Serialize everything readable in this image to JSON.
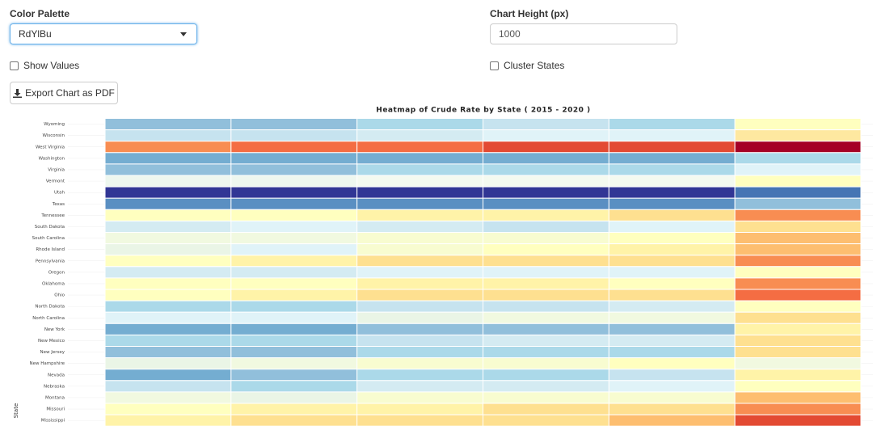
{
  "controls": {
    "color_palette_label": "Color Palette",
    "color_palette_value": "RdYlBu",
    "chart_height_label": "Chart Height (px)",
    "chart_height_value": "1000",
    "show_values_label": "Show Values",
    "cluster_states_label": "Cluster States",
    "export_button": "Export Chart as PDF"
  },
  "heatmap": {
    "title": "Heatmap of Crude Rate by State ( 2015 - 2020 )",
    "y_axis_label": "State",
    "rows": [
      {
        "state": "Wyoming",
        "colors": [
          "#91bfdb",
          "#91bfdb",
          "#abd9e9",
          "#c6e3ef",
          "#abd9e9",
          "#ffffbf"
        ]
      },
      {
        "state": "Wisconsin",
        "colors": [
          "#c6e3ef",
          "#c6e3ef",
          "#d4ebf2",
          "#e0f3f8",
          "#e0f3f8",
          "#fee8a0"
        ]
      },
      {
        "state": "West Virginia",
        "colors": [
          "#f88d52",
          "#f46d43",
          "#f46d43",
          "#e34a33",
          "#e34a33",
          "#a50026"
        ]
      },
      {
        "state": "Washington",
        "colors": [
          "#74add1",
          "#74add1",
          "#74add1",
          "#74add1",
          "#74add1",
          "#abd9e9"
        ]
      },
      {
        "state": "Virginia",
        "colors": [
          "#91bfdb",
          "#91bfdb",
          "#abd9e9",
          "#abd9e9",
          "#abd9e9",
          "#e0f3f8"
        ]
      },
      {
        "state": "Vermont",
        "colors": [
          "#eef7ef",
          "#eef7ef",
          "#f4faf0",
          "#f4faf0",
          "#f4faf0",
          "#ffffbf"
        ]
      },
      {
        "state": "Utah",
        "colors": [
          "#313695",
          "#313695",
          "#313695",
          "#313695",
          "#313695",
          "#4575b4"
        ]
      },
      {
        "state": "Texas",
        "colors": [
          "#5a8fc2",
          "#5a8fc2",
          "#5a8fc2",
          "#5a8fc2",
          "#5a8fc2",
          "#91bfdb"
        ]
      },
      {
        "state": "Tennessee",
        "colors": [
          "#ffffbf",
          "#ffffbf",
          "#fff3a8",
          "#fff3a8",
          "#fee090",
          "#f88d52"
        ]
      },
      {
        "state": "South Dakota",
        "colors": [
          "#d4ebf2",
          "#e0f3f8",
          "#d4ebf2",
          "#c6e3ef",
          "#e0f3f8",
          "#fee090"
        ]
      },
      {
        "state": "South Carolina",
        "colors": [
          "#f1f9e0",
          "#f1f9e0",
          "#f8fcd0",
          "#f8fcd0",
          "#ffffbf",
          "#fdbe70"
        ]
      },
      {
        "state": "Rhode Island",
        "colors": [
          "#eaf5e6",
          "#e0f3f8",
          "#f8fcd0",
          "#ffffbf",
          "#fff3a8",
          "#fdbe70"
        ]
      },
      {
        "state": "Pennsylvania",
        "colors": [
          "#ffffbf",
          "#fff3a8",
          "#fee090",
          "#fee090",
          "#fee090",
          "#f88d52"
        ]
      },
      {
        "state": "Oregon",
        "colors": [
          "#d4ebf2",
          "#d4ebf2",
          "#e0f3f8",
          "#e0f3f8",
          "#e0f3f8",
          "#ffffbf"
        ]
      },
      {
        "state": "Oklahoma",
        "colors": [
          "#ffffbf",
          "#ffffbf",
          "#fff3a8",
          "#fff3a8",
          "#ffffbf",
          "#f88d52"
        ]
      },
      {
        "state": "Ohio",
        "colors": [
          "#ffffbf",
          "#fff3a8",
          "#fee090",
          "#fee090",
          "#fee090",
          "#f46d43"
        ]
      },
      {
        "state": "North Dakota",
        "colors": [
          "#abd9e9",
          "#abd9e9",
          "#c6e3ef",
          "#c6e3ef",
          "#d4ebf2",
          "#ffffbf"
        ]
      },
      {
        "state": "North Carolina",
        "colors": [
          "#e0f3f8",
          "#e0f3f8",
          "#eaf5e6",
          "#f1f9e0",
          "#f1f9e0",
          "#fee090"
        ]
      },
      {
        "state": "New York",
        "colors": [
          "#74add1",
          "#74add1",
          "#91bfdb",
          "#91bfdb",
          "#91bfdb",
          "#fff3a8"
        ]
      },
      {
        "state": "New Mexico",
        "colors": [
          "#abd9e9",
          "#abd9e9",
          "#c6e3ef",
          "#d4ebf2",
          "#d4ebf2",
          "#fee090"
        ]
      },
      {
        "state": "New Jersey",
        "colors": [
          "#91bfdb",
          "#91bfdb",
          "#abd9e9",
          "#abd9e9",
          "#abd9e9",
          "#fee090"
        ]
      },
      {
        "state": "New Hampshire",
        "colors": [
          "#eaf5e6",
          "#f1f9e0",
          "#f8fcd0",
          "#f8fcd0",
          "#ffffbf",
          "#f1f9e0"
        ]
      },
      {
        "state": "Nevada",
        "colors": [
          "#74add1",
          "#91bfdb",
          "#abd9e9",
          "#abd9e9",
          "#c6e3ef",
          "#fff3a8"
        ]
      },
      {
        "state": "Nebraska",
        "colors": [
          "#c6e3ef",
          "#abd9e9",
          "#d4ebf2",
          "#d4ebf2",
          "#e0f3f8",
          "#ffffbf"
        ]
      },
      {
        "state": "Montana",
        "colors": [
          "#f1f9e0",
          "#eaf5e6",
          "#f8fcd0",
          "#f8fcd0",
          "#f8fcd0",
          "#fdbe70"
        ]
      },
      {
        "state": "Missouri",
        "colors": [
          "#ffffbf",
          "#fff3a8",
          "#fff3a8",
          "#fee090",
          "#fee090",
          "#f88d52"
        ]
      },
      {
        "state": "Mississippi",
        "colors": [
          "#fff3a8",
          "#fee090",
          "#fee090",
          "#fee090",
          "#fdbe70",
          "#e34a33"
        ]
      }
    ]
  }
}
